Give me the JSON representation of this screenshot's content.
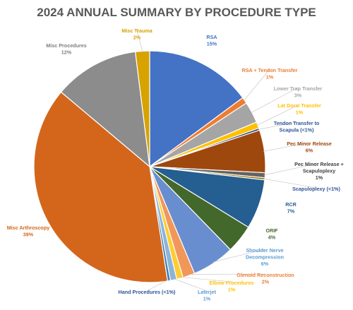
{
  "chart_data": {
    "type": "pie",
    "title": "2024 ANNUAL SUMMARY BY PROCEDURE TYPE",
    "slices": [
      {
        "name": "RSA",
        "pct_label": "15%",
        "value": 15,
        "color": "#4472C4"
      },
      {
        "name": "RSA + Tendon Transfer",
        "pct_label": "1%",
        "value": 0.9,
        "color": "#ED7D31"
      },
      {
        "name": "Lower Trap Transfer",
        "pct_label": "3%",
        "value": 3.0,
        "color": "#A5A5A5"
      },
      {
        "name": "Lat Dorsi Transfer",
        "pct_label": "1%",
        "value": 0.9,
        "color": "#FFC000"
      },
      {
        "name": "Tendon Transfer to Scapula (<1%)",
        "pct_label": "",
        "value": 0.3,
        "color": "#264478"
      },
      {
        "name": "Pec Minor Release",
        "pct_label": "6%",
        "value": 6.0,
        "color": "#9E480E"
      },
      {
        "name": "Pec Minor Release + Scapuloplexy",
        "pct_label": "1%",
        "value": 0.7,
        "color": "#636363"
      },
      {
        "name": "Scapuloplexy (<1%)",
        "pct_label": "",
        "value": 0.3,
        "color": "#997300"
      },
      {
        "name": "RCR",
        "pct_label": "7%",
        "value": 7.0,
        "color": "#255E91"
      },
      {
        "name": "ORIF",
        "pct_label": "4%",
        "value": 4.0,
        "color": "#43682B"
      },
      {
        "name": "Shoulder Nerve Decompression",
        "pct_label": "6%",
        "value": 6.0,
        "color": "#698ED0"
      },
      {
        "name": "Glenoid Reconstruction",
        "pct_label": "2%",
        "value": 1.7,
        "color": "#F1975A"
      },
      {
        "name": "Elbow Procedures",
        "pct_label": "1%",
        "value": 0.9,
        "color": "#FFCD33"
      },
      {
        "name": "Laterjet",
        "pct_label": "1%",
        "value": 0.9,
        "color": "#8CB4D9"
      },
      {
        "name": "Hand Procedures (<1%)",
        "pct_label": "",
        "value": 0.4,
        "color": "#3E7CB5"
      },
      {
        "name": "Misc Arthroscopy",
        "pct_label": "39%",
        "value": 39.0,
        "color": "#D4661B"
      },
      {
        "name": "Misc Procedures",
        "pct_label": "12%",
        "value": 12.0,
        "color": "#8C8C8C"
      },
      {
        "name": "Misc Trauma",
        "pct_label": "2%",
        "value": 2.0,
        "color": "#D6A300"
      }
    ]
  }
}
